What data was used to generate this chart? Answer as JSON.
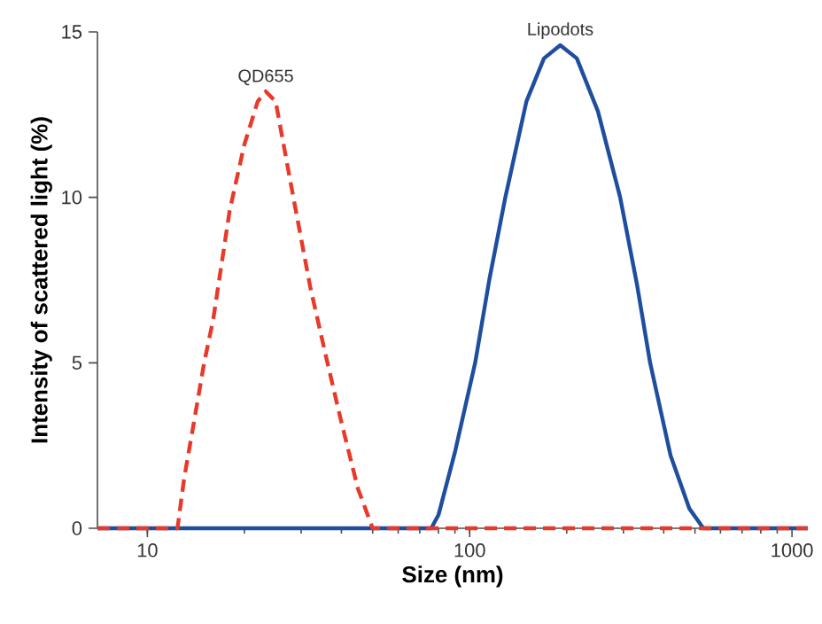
{
  "chart_data": {
    "type": "line",
    "xlabel": "Size (nm)",
    "ylabel": "Intensity of scattered light (%)",
    "log": "x",
    "xlim": [
      7,
      1120
    ],
    "ylim": [
      0,
      15
    ],
    "xticks": [
      10,
      100,
      1000
    ],
    "yticks": [
      0,
      5,
      10,
      15
    ],
    "grid": false,
    "legend": false,
    "marker": "none",
    "series": [
      {
        "name": "Lipodots",
        "color": "#1f4e9e",
        "line_style": "solid",
        "x": [
          7,
          76,
          80,
          90,
          104,
          115,
          129,
          150,
          170,
          191,
          215,
          250,
          293,
          330,
          363,
          420,
          480,
          531,
          1120
        ],
        "values": [
          0,
          0,
          0.4,
          2.3,
          5,
          7.5,
          10,
          12.9,
          14.2,
          14.6,
          14.2,
          12.6,
          10,
          7.4,
          5,
          2.2,
          0.6,
          0,
          0
        ]
      },
      {
        "name": "QD655",
        "color": "#e8392a",
        "line_style": "dashed",
        "x": [
          7,
          12.4,
          13,
          14,
          15,
          16,
          18,
          20,
          22,
          23.3,
          25,
          28,
          32,
          36,
          40,
          45,
          50,
          1120
        ],
        "values": [
          0,
          0,
          1.5,
          3.3,
          5,
          6.3,
          9.6,
          11.6,
          12.9,
          13.2,
          12.9,
          10.3,
          7.3,
          5.1,
          3.2,
          1.2,
          0,
          0
        ]
      }
    ]
  }
}
